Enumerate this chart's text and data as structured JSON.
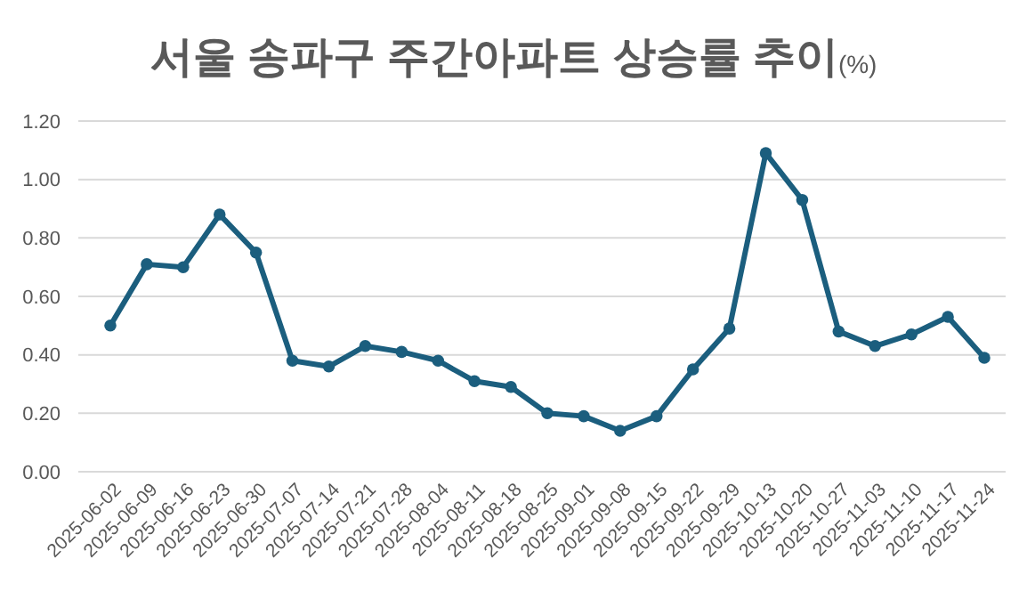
{
  "chart_data": {
    "type": "line",
    "title": "서울 송파구 주간아파트 상승률 추이",
    "subtitle": "(%)",
    "categories": [
      "2025-06-02",
      "2025-06-09",
      "2025-06-16",
      "2025-06-23",
      "2025-06-30",
      "2025-07-07",
      "2025-07-14",
      "2025-07-21",
      "2025-07-28",
      "2025-08-04",
      "2025-08-11",
      "2025-08-18",
      "2025-08-25",
      "2025-09-01",
      "2025-09-08",
      "2025-09-15",
      "2025-09-22",
      "2025-09-29",
      "2025-10-13",
      "2025-10-20",
      "2025-10-27",
      "2025-11-03",
      "2025-11-10",
      "2025-11-17",
      "2025-11-24"
    ],
    "series": [
      {
        "color": "#1b5e7e",
        "values": [
          0.5,
          0.71,
          0.7,
          0.88,
          0.75,
          0.38,
          0.36,
          0.43,
          0.41,
          0.38,
          0.31,
          0.29,
          0.2,
          0.19,
          0.14,
          0.19,
          0.35,
          0.49,
          1.09,
          0.93,
          0.48,
          0.43,
          0.47,
          0.53,
          0.39
        ]
      }
    ],
    "ylim": [
      0,
      1.2
    ],
    "yticks": [
      {
        "value": 0,
        "label": "0.00"
      },
      {
        "value": 0.2,
        "label": "0.20"
      },
      {
        "value": 0.4,
        "label": "0.40"
      },
      {
        "value": 0.6,
        "label": "0.60"
      },
      {
        "value": 0.8,
        "label": "0.80"
      },
      {
        "value": 1.0,
        "label": "1.00"
      },
      {
        "value": 1.2,
        "label": "1.20"
      }
    ],
    "grid": "y",
    "marker": "circle",
    "line_style": "solid"
  }
}
